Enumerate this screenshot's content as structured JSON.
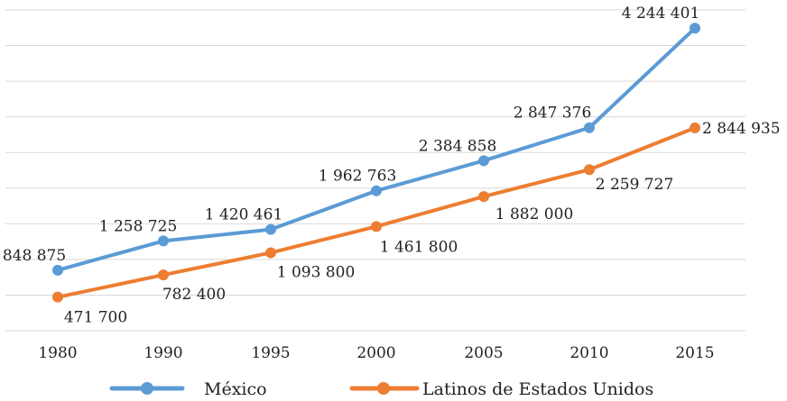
{
  "chart_data": {
    "type": "line",
    "categories": [
      "1980",
      "1990",
      "1995",
      "2000",
      "2005",
      "2010",
      "2015"
    ],
    "ylim": [
      0,
      4500000
    ],
    "grid": true,
    "legend": "bottom",
    "series": [
      {
        "name": "México",
        "color": "#5b9bd5",
        "values": [
          848875,
          1258725,
          1420461,
          1962763,
          2384858,
          2847376,
          4244401
        ],
        "labels": [
          "848 875",
          "1 258 725",
          "1 420 461",
          "1 962 763",
          "2 384 858",
          "2 847 376",
          "4 244 401"
        ]
      },
      {
        "name": "Latinos de Estados Unidos",
        "color": "#ed7d31",
        "values": [
          471700,
          782400,
          1093800,
          1461800,
          1882000,
          2259727,
          2844935
        ],
        "labels": [
          "471 700",
          "782 400",
          "1 093 800",
          "1 461 800",
          "1 882 000",
          "2 259 727",
          "2 844 935"
        ]
      }
    ]
  }
}
